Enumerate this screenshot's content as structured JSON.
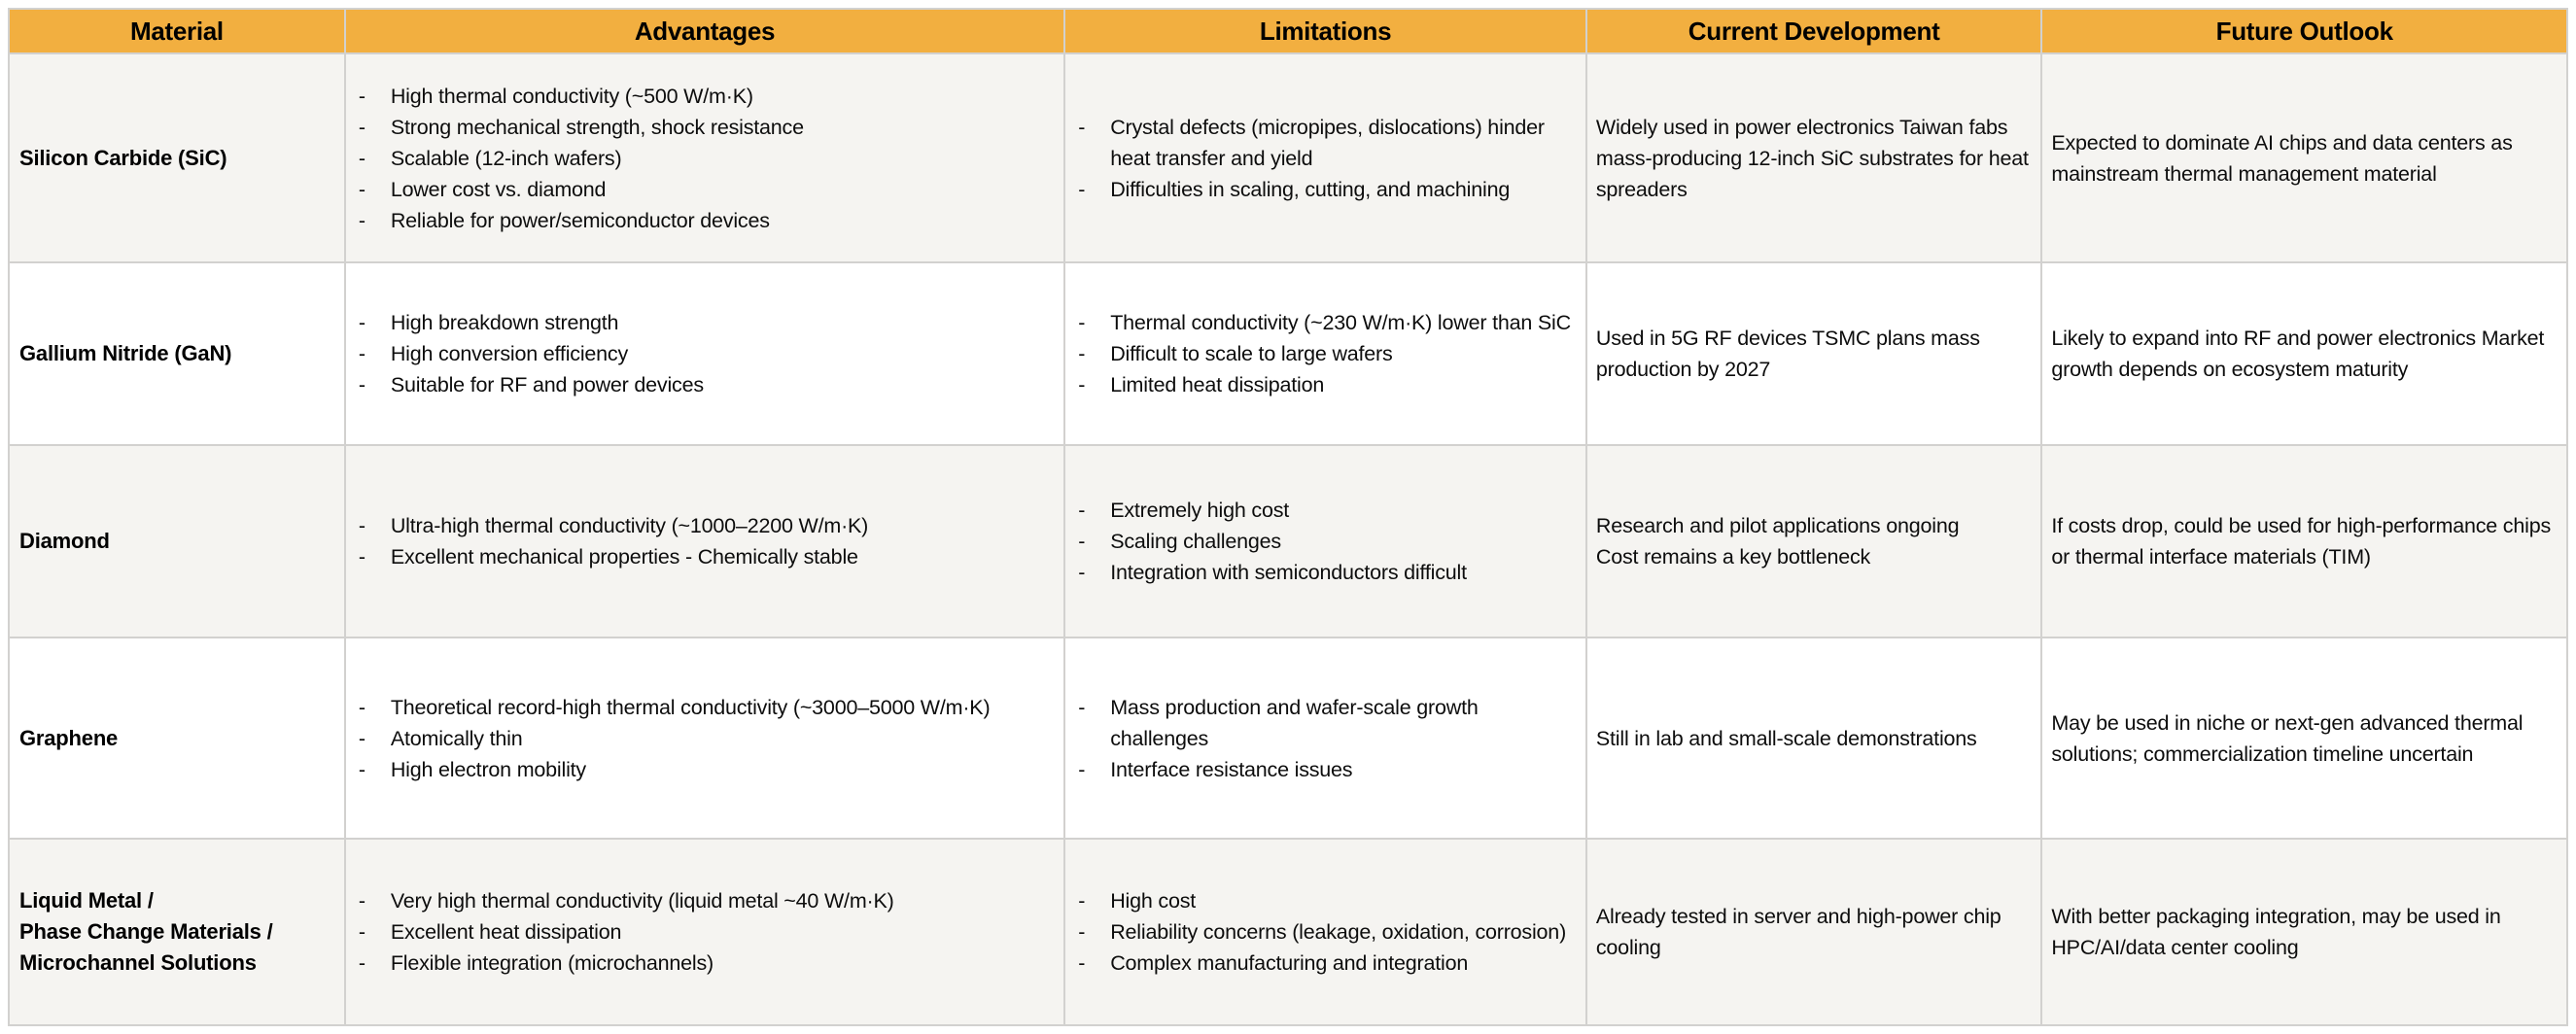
{
  "colors": {
    "header_bg": "#F2AF40",
    "row_alt": "#F5F4F1",
    "row_base": "#FFFFFF",
    "border": "#D2D1CF",
    "text": "#0D0D0D"
  },
  "table": {
    "columns": [
      "Material",
      "Advantages",
      "Limitations",
      "Current Development",
      "Future Outlook"
    ],
    "rows": [
      {
        "material": [
          "Silicon Carbide (SiC)"
        ],
        "advantages": [
          "High thermal conductivity (~500 W/m·K)",
          "Strong mechanical strength, shock resistance",
          "Scalable (12-inch wafers)",
          "Lower cost vs. diamond",
          "Reliable for power/semiconductor devices"
        ],
        "limitations": [
          "Crystal defects (micropipes, dislocations) hinder heat transfer and yield",
          "Difficulties in scaling, cutting, and machining"
        ],
        "current_development": [
          "Widely used in power electronics Taiwan fabs mass-producing 12-inch SiC substrates for heat spreaders"
        ],
        "future_outlook": [
          "Expected to dominate AI chips and data centers as mainstream thermal management material"
        ]
      },
      {
        "material": [
          "Gallium Nitride (GaN)"
        ],
        "advantages": [
          "High breakdown strength",
          "High conversion efficiency",
          "Suitable for RF and power devices"
        ],
        "limitations": [
          "Thermal conductivity (~230 W/m·K) lower than SiC",
          "Difficult to scale to large wafers",
          "Limited heat dissipation"
        ],
        "current_development": [
          "Used in 5G RF devices TSMC plans mass production by 2027"
        ],
        "future_outlook": [
          "Likely to expand into RF and power electronics Market growth depends on ecosystem maturity"
        ]
      },
      {
        "material": [
          "Diamond"
        ],
        "advantages": [
          "Ultra-high thermal conductivity (~1000–2200 W/m·K)",
          "Excellent mechanical properties - Chemically stable"
        ],
        "limitations": [
          "Extremely high cost",
          "Scaling challenges",
          "Integration with semiconductors difficult"
        ],
        "current_development": [
          "Research and pilot applications ongoing",
          "Cost remains a key bottleneck"
        ],
        "future_outlook": [
          "If costs drop, could be used for high-performance chips or thermal interface materials (TIM)"
        ]
      },
      {
        "material": [
          "Graphene"
        ],
        "advantages": [
          "Theoretical record-high thermal conductivity (~3000–5000 W/m·K)",
          "Atomically thin",
          "High electron mobility"
        ],
        "limitations": [
          "Mass production and wafer-scale growth challenges",
          "Interface resistance issues"
        ],
        "current_development": [
          "Still in lab and small-scale demonstrations"
        ],
        "future_outlook": [
          "May be used in niche or next-gen advanced thermal solutions; commercialization timeline uncertain"
        ]
      },
      {
        "material": [
          "Liquid Metal /",
          "Phase Change Materials /",
          "Microchannel Solutions"
        ],
        "advantages": [
          "Very high thermal conductivity (liquid metal ~40 W/m·K)",
          "Excellent heat dissipation",
          "Flexible integration (microchannels)"
        ],
        "limitations": [
          "High cost",
          "Reliability concerns (leakage, oxidation, corrosion)",
          "Complex manufacturing and integration"
        ],
        "current_development": [
          "Already tested in server and high-power chip cooling"
        ],
        "future_outlook": [
          "With better packaging integration, may be used in HPC/AI/data center cooling"
        ]
      }
    ]
  }
}
